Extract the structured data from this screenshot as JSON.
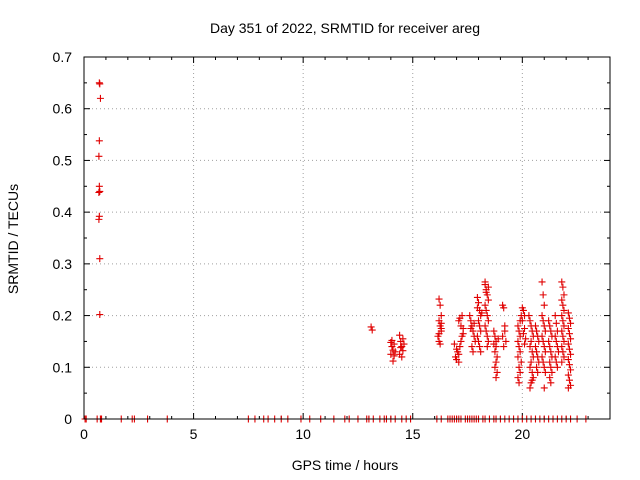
{
  "chart_data": {
    "type": "scatter",
    "title": "Day 351 of 2022, SRMTID for receiver areg",
    "xlabel": "GPS time / hours",
    "ylabel": "SRMTID / TECUs",
    "xlim": [
      0,
      24
    ],
    "ylim": [
      0,
      0.7
    ],
    "xticks": [
      0,
      5,
      10,
      15,
      20
    ],
    "yticks": [
      0,
      0.1,
      0.2,
      0.3,
      0.4,
      0.5,
      0.6,
      0.7
    ],
    "xtick_labels": [
      "0",
      "5",
      "10",
      "15",
      "20"
    ],
    "ytick_labels": [
      "0",
      "0.1",
      "0.2",
      "0.3",
      "0.4",
      "0.5",
      "0.6",
      "0.7"
    ],
    "grid": true,
    "marker": "plus",
    "color": "#e00000",
    "series": [
      {
        "name": "SRMTID",
        "points": [
          [
            0.7,
            0.65
          ],
          [
            0.72,
            0.648
          ],
          [
            0.75,
            0.62
          ],
          [
            0.7,
            0.538
          ],
          [
            0.68,
            0.508
          ],
          [
            0.7,
            0.45
          ],
          [
            0.72,
            0.44
          ],
          [
            0.68,
            0.438
          ],
          [
            0.7,
            0.392
          ],
          [
            0.68,
            0.386
          ],
          [
            0.72,
            0.31
          ],
          [
            0.72,
            0.202
          ],
          [
            13.1,
            0.178
          ],
          [
            13.15,
            0.172
          ],
          [
            14.0,
            0.148
          ],
          [
            14.05,
            0.14
          ],
          [
            14.1,
            0.133
          ],
          [
            14.15,
            0.145
          ],
          [
            14.0,
            0.125
          ],
          [
            14.1,
            0.112
          ],
          [
            14.2,
            0.13
          ],
          [
            14.05,
            0.152
          ],
          [
            14.15,
            0.122
          ],
          [
            14.4,
            0.162
          ],
          [
            14.45,
            0.15
          ],
          [
            14.5,
            0.14
          ],
          [
            14.55,
            0.132
          ],
          [
            14.4,
            0.125
          ],
          [
            14.5,
            0.12
          ],
          [
            14.6,
            0.145
          ],
          [
            14.45,
            0.138
          ],
          [
            14.55,
            0.155
          ],
          [
            16.2,
            0.232
          ],
          [
            16.25,
            0.22
          ],
          [
            16.3,
            0.2
          ],
          [
            16.2,
            0.19
          ],
          [
            16.25,
            0.18
          ],
          [
            16.3,
            0.17
          ],
          [
            16.15,
            0.16
          ],
          [
            16.2,
            0.15
          ],
          [
            16.25,
            0.145
          ],
          [
            16.3,
            0.175
          ],
          [
            16.2,
            0.165
          ],
          [
            16.3,
            0.185
          ],
          [
            16.9,
            0.145
          ],
          [
            17.0,
            0.135
          ],
          [
            17.1,
            0.125
          ],
          [
            16.95,
            0.12
          ],
          [
            17.05,
            0.13
          ],
          [
            17.15,
            0.14
          ],
          [
            17.2,
            0.15
          ],
          [
            17.25,
            0.16
          ],
          [
            17.3,
            0.175
          ],
          [
            17.1,
            0.19
          ],
          [
            17.2,
            0.18
          ],
          [
            17.3,
            0.165
          ],
          [
            17.0,
            0.115
          ],
          [
            17.1,
            0.11
          ],
          [
            17.25,
            0.2
          ],
          [
            17.15,
            0.195
          ],
          [
            17.6,
            0.2
          ],
          [
            17.65,
            0.19
          ],
          [
            17.7,
            0.18
          ],
          [
            17.75,
            0.17
          ],
          [
            17.8,
            0.16
          ],
          [
            17.85,
            0.15
          ],
          [
            17.7,
            0.14
          ],
          [
            17.75,
            0.13
          ],
          [
            17.65,
            0.175
          ],
          [
            17.8,
            0.185
          ],
          [
            17.95,
            0.235
          ],
          [
            18.0,
            0.225
          ],
          [
            18.05,
            0.21
          ],
          [
            18.1,
            0.2
          ],
          [
            18.0,
            0.19
          ],
          [
            18.05,
            0.18
          ],
          [
            18.1,
            0.17
          ],
          [
            17.95,
            0.16
          ],
          [
            18.0,
            0.15
          ],
          [
            18.05,
            0.14
          ],
          [
            18.1,
            0.13
          ],
          [
            17.95,
            0.215
          ],
          [
            18.15,
            0.205
          ],
          [
            18.3,
            0.26
          ],
          [
            18.35,
            0.25
          ],
          [
            18.4,
            0.24
          ],
          [
            18.45,
            0.23
          ],
          [
            18.3,
            0.22
          ],
          [
            18.35,
            0.21
          ],
          [
            18.4,
            0.2
          ],
          [
            18.45,
            0.19
          ],
          [
            18.3,
            0.18
          ],
          [
            18.35,
            0.17
          ],
          [
            18.4,
            0.16
          ],
          [
            18.45,
            0.15
          ],
          [
            18.4,
            0.14
          ],
          [
            18.35,
            0.245
          ],
          [
            18.45,
            0.255
          ],
          [
            18.3,
            0.265
          ],
          [
            18.7,
            0.17
          ],
          [
            18.75,
            0.16
          ],
          [
            18.8,
            0.15
          ],
          [
            18.7,
            0.145
          ],
          [
            18.8,
            0.14
          ],
          [
            18.75,
            0.13
          ],
          [
            18.85,
            0.12
          ],
          [
            18.8,
            0.11
          ],
          [
            18.75,
            0.1
          ],
          [
            18.85,
            0.09
          ],
          [
            18.8,
            0.08
          ],
          [
            18.9,
            0.155
          ],
          [
            19.1,
            0.22
          ],
          [
            19.15,
            0.215
          ],
          [
            19.2,
            0.17
          ],
          [
            19.1,
            0.16
          ],
          [
            19.25,
            0.15
          ],
          [
            19.15,
            0.14
          ],
          [
            19.2,
            0.18
          ],
          [
            19.8,
            0.18
          ],
          [
            19.85,
            0.17
          ],
          [
            19.9,
            0.16
          ],
          [
            19.8,
            0.15
          ],
          [
            19.85,
            0.14
          ],
          [
            19.9,
            0.13
          ],
          [
            19.8,
            0.12
          ],
          [
            19.95,
            0.11
          ],
          [
            19.85,
            0.1
          ],
          [
            19.9,
            0.09
          ],
          [
            19.8,
            0.08
          ],
          [
            19.85,
            0.07
          ],
          [
            19.95,
            0.2
          ],
          [
            19.9,
            0.19
          ],
          [
            20.0,
            0.215
          ],
          [
            20.05,
            0.21
          ],
          [
            20.1,
            0.2
          ],
          [
            20.0,
            0.19
          ],
          [
            20.1,
            0.175
          ],
          [
            20.05,
            0.165
          ],
          [
            20.15,
            0.155
          ],
          [
            20.1,
            0.145
          ],
          [
            20.3,
            0.2
          ],
          [
            20.35,
            0.19
          ],
          [
            20.4,
            0.18
          ],
          [
            20.45,
            0.17
          ],
          [
            20.5,
            0.16
          ],
          [
            20.4,
            0.15
          ],
          [
            20.35,
            0.14
          ],
          [
            20.45,
            0.13
          ],
          [
            20.5,
            0.12
          ],
          [
            20.4,
            0.11
          ],
          [
            20.35,
            0.1
          ],
          [
            20.45,
            0.09
          ],
          [
            20.5,
            0.08
          ],
          [
            20.4,
            0.07
          ],
          [
            20.35,
            0.06
          ],
          [
            20.45,
            0.075
          ],
          [
            20.6,
            0.18
          ],
          [
            20.65,
            0.17
          ],
          [
            20.7,
            0.16
          ],
          [
            20.75,
            0.15
          ],
          [
            20.6,
            0.14
          ],
          [
            20.65,
            0.13
          ],
          [
            20.7,
            0.12
          ],
          [
            20.75,
            0.11
          ],
          [
            20.65,
            0.1
          ],
          [
            20.7,
            0.09
          ],
          [
            20.9,
            0.265
          ],
          [
            20.95,
            0.24
          ],
          [
            21.0,
            0.22
          ],
          [
            20.9,
            0.2
          ],
          [
            20.95,
            0.19
          ],
          [
            21.0,
            0.18
          ],
          [
            21.05,
            0.17
          ],
          [
            20.9,
            0.16
          ],
          [
            20.95,
            0.15
          ],
          [
            21.0,
            0.14
          ],
          [
            21.05,
            0.13
          ],
          [
            20.9,
            0.12
          ],
          [
            20.95,
            0.11
          ],
          [
            21.0,
            0.1
          ],
          [
            21.05,
            0.09
          ],
          [
            21.0,
            0.06
          ],
          [
            21.2,
            0.19
          ],
          [
            21.25,
            0.18
          ],
          [
            21.3,
            0.17
          ],
          [
            21.35,
            0.16
          ],
          [
            21.2,
            0.15
          ],
          [
            21.25,
            0.14
          ],
          [
            21.3,
            0.13
          ],
          [
            21.35,
            0.12
          ],
          [
            21.25,
            0.11
          ],
          [
            21.3,
            0.1
          ],
          [
            21.35,
            0.09
          ],
          [
            21.25,
            0.08
          ],
          [
            21.3,
            0.07
          ],
          [
            21.5,
            0.2
          ],
          [
            21.55,
            0.185
          ],
          [
            21.6,
            0.17
          ],
          [
            21.5,
            0.16
          ],
          [
            21.55,
            0.15
          ],
          [
            21.6,
            0.14
          ],
          [
            21.65,
            0.13
          ],
          [
            21.5,
            0.12
          ],
          [
            21.55,
            0.11
          ],
          [
            21.6,
            0.1
          ],
          [
            21.8,
            0.265
          ],
          [
            21.85,
            0.255
          ],
          [
            21.9,
            0.24
          ],
          [
            21.8,
            0.23
          ],
          [
            21.85,
            0.22
          ],
          [
            21.9,
            0.21
          ],
          [
            21.8,
            0.2
          ],
          [
            21.85,
            0.19
          ],
          [
            21.9,
            0.18
          ],
          [
            21.8,
            0.17
          ],
          [
            21.85,
            0.16
          ],
          [
            21.9,
            0.15
          ],
          [
            21.8,
            0.14
          ],
          [
            21.85,
            0.13
          ],
          [
            21.9,
            0.12
          ],
          [
            21.8,
            0.11
          ],
          [
            22.1,
            0.205
          ],
          [
            22.15,
            0.195
          ],
          [
            22.2,
            0.185
          ],
          [
            22.1,
            0.175
          ],
          [
            22.15,
            0.165
          ],
          [
            22.2,
            0.155
          ],
          [
            22.1,
            0.145
          ],
          [
            22.15,
            0.135
          ],
          [
            22.2,
            0.125
          ],
          [
            22.1,
            0.115
          ],
          [
            22.15,
            0.105
          ],
          [
            22.2,
            0.095
          ],
          [
            22.1,
            0.085
          ],
          [
            22.15,
            0.075
          ],
          [
            22.2,
            0.065
          ],
          [
            22.1,
            0.06
          ],
          [
            0.05,
            0
          ],
          [
            0.1,
            0
          ],
          [
            0.6,
            0
          ],
          [
            0.75,
            0
          ],
          [
            0.8,
            0
          ],
          [
            1.7,
            0
          ],
          [
            2.2,
            0
          ],
          [
            2.3,
            0
          ],
          [
            2.9,
            0
          ],
          [
            3.8,
            0
          ],
          [
            7.5,
            0
          ],
          [
            7.8,
            0
          ],
          [
            8.2,
            0
          ],
          [
            8.4,
            0
          ],
          [
            8.7,
            0
          ],
          [
            9.0,
            0
          ],
          [
            9.3,
            0
          ],
          [
            9.9,
            0
          ],
          [
            10.3,
            0
          ],
          [
            10.8,
            0
          ],
          [
            11.4,
            0
          ],
          [
            11.9,
            0
          ],
          [
            12.1,
            0
          ],
          [
            12.5,
            0
          ],
          [
            12.9,
            0
          ],
          [
            13.0,
            0
          ],
          [
            13.2,
            0
          ],
          [
            13.5,
            0
          ],
          [
            13.7,
            0
          ],
          [
            13.8,
            0
          ],
          [
            14.0,
            0
          ],
          [
            14.2,
            0
          ],
          [
            14.5,
            0
          ],
          [
            14.7,
            0
          ],
          [
            14.9,
            0
          ],
          [
            16.1,
            0
          ],
          [
            16.3,
            0
          ],
          [
            16.6,
            0
          ],
          [
            16.7,
            0
          ],
          [
            16.8,
            0
          ],
          [
            16.9,
            0
          ],
          [
            17.0,
            0
          ],
          [
            17.1,
            0
          ],
          [
            17.2,
            0
          ],
          [
            17.4,
            0
          ],
          [
            17.5,
            0
          ],
          [
            17.6,
            0
          ],
          [
            17.7,
            0
          ],
          [
            17.8,
            0
          ],
          [
            17.9,
            0
          ],
          [
            18.0,
            0
          ],
          [
            18.2,
            0
          ],
          [
            18.3,
            0
          ],
          [
            18.5,
            0
          ],
          [
            18.7,
            0
          ],
          [
            18.8,
            0
          ],
          [
            19.0,
            0
          ],
          [
            19.2,
            0
          ],
          [
            19.4,
            0
          ],
          [
            19.6,
            0
          ],
          [
            19.8,
            0
          ],
          [
            20.0,
            0
          ],
          [
            20.2,
            0
          ],
          [
            20.4,
            0
          ],
          [
            20.6,
            0
          ],
          [
            20.8,
            0
          ],
          [
            21.0,
            0
          ],
          [
            21.2,
            0
          ],
          [
            21.4,
            0
          ],
          [
            21.6,
            0
          ],
          [
            21.8,
            0
          ],
          [
            22.0,
            0
          ],
          [
            22.2,
            0
          ],
          [
            22.5,
            0
          ],
          [
            22.9,
            0
          ]
        ]
      }
    ]
  }
}
